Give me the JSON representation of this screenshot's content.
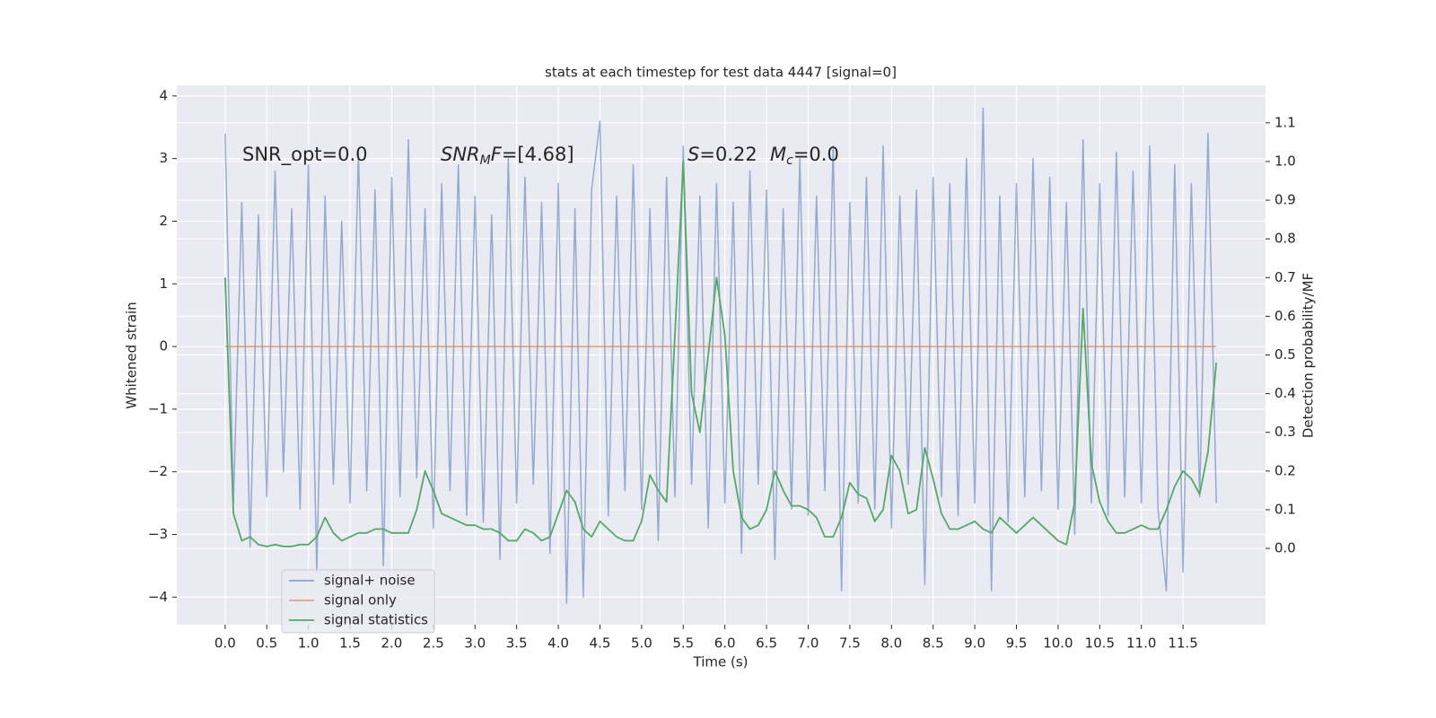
{
  "chart_data": {
    "type": "line",
    "title": "stats at each timestep for test data 4447 [signal=0]",
    "xlabel": "Time (s)",
    "ylabel": "Whitened strain",
    "y2label": "Detection probability/MF",
    "annotations": [
      [
        {
          "text": "SNR_opt=0.0"
        }
      ],
      [
        {
          "text": "SNR",
          "italic": true
        },
        {
          "text": "M",
          "italic": true,
          "sub": true
        },
        {
          "text": "F",
          "italic": true
        },
        {
          "text": "=[4.68]"
        }
      ],
      [
        {
          "text": "S",
          "italic": true
        },
        {
          "text": "=0.22"
        }
      ],
      [
        {
          "text": "M",
          "italic": true
        },
        {
          "text": "c",
          "italic": true,
          "sub": true
        },
        {
          "text": "=0.0"
        }
      ]
    ],
    "x": [
      0,
      0.1,
      0.2,
      0.3,
      0.4,
      0.5,
      0.6,
      0.7,
      0.8,
      0.9,
      1,
      1.1,
      1.2,
      1.3,
      1.4,
      1.5,
      1.6,
      1.7,
      1.8,
      1.9,
      2,
      2.1,
      2.2,
      2.3,
      2.4,
      2.5,
      2.6,
      2.7,
      2.8,
      2.9,
      3,
      3.1,
      3.2,
      3.3,
      3.4,
      3.5,
      3.6,
      3.7,
      3.8,
      3.9,
      4,
      4.1,
      4.2,
      4.3,
      4.4,
      4.5,
      4.6,
      4.7,
      4.8,
      4.9,
      5,
      5.1,
      5.2,
      5.3,
      5.4,
      5.5,
      5.6,
      5.7,
      5.8,
      5.9,
      6,
      6.1,
      6.2,
      6.3,
      6.4,
      6.5,
      6.6,
      6.7,
      6.8,
      6.9,
      7,
      7.1,
      7.2,
      7.3,
      7.4,
      7.5,
      7.6,
      7.7,
      7.8,
      7.9,
      8,
      8.1,
      8.2,
      8.3,
      8.4,
      8.5,
      8.6,
      8.7,
      8.8,
      8.9,
      9,
      9.1,
      9.2,
      9.3,
      9.4,
      9.5,
      9.6,
      9.7,
      9.8,
      9.9,
      10,
      10.1,
      10.2,
      10.3,
      10.4,
      10.5,
      10.6,
      10.7,
      10.8,
      10.9,
      11,
      11.1,
      11.2,
      11.3,
      11.4,
      11.5,
      11.6,
      11.7,
      11.8,
      11.9
    ],
    "series": [
      {
        "name": "signal+ noise",
        "color": "#4c72b0",
        "values": [
          3.4,
          -2.5,
          2.3,
          -3.2,
          2.1,
          -2.4,
          2.8,
          -2.0,
          2.2,
          -2.6,
          2.9,
          -3.6,
          2.4,
          -2.2,
          2.0,
          -2.5,
          3.1,
          -2.3,
          2.5,
          -3.5,
          2.7,
          -2.4,
          3.3,
          -2.1,
          2.2,
          -2.9,
          2.6,
          -2.3,
          2.9,
          -2.7,
          2.4,
          -2.8,
          2.1,
          -3.4,
          3.0,
          -2.5,
          2.7,
          -2.2,
          2.3,
          -3.3,
          2.6,
          -4.1,
          2.2,
          -4.0,
          2.5,
          3.6,
          -2.7,
          2.4,
          -2.3,
          2.9,
          -2.6,
          2.2,
          -3.1,
          2.7,
          -2.4,
          3.2,
          -2.2,
          2.4,
          -2.9,
          2.6,
          -2.5,
          2.3,
          -3.3,
          2.8,
          -2.2,
          2.5,
          -3.4,
          2.2,
          -2.6,
          3.0,
          -2.7,
          2.4,
          -2.3,
          3.2,
          -3.9,
          2.3,
          -2.5,
          2.7,
          -2.6,
          3.2,
          -2.9,
          2.4,
          -2.2,
          2.5,
          -3.8,
          2.7,
          -2.4,
          2.6,
          -2.7,
          3.0,
          -2.5,
          3.8,
          -3.9,
          2.4,
          -2.8,
          2.6,
          -2.4,
          3.0,
          -2.3,
          2.7,
          -2.6,
          2.3,
          -3.0,
          3.3,
          -2.5,
          2.6,
          -2.7,
          3.1,
          -2.4,
          2.8,
          -2.5,
          3.2,
          -2.6,
          -3.9,
          2.9,
          -3.6,
          2.6,
          -2.4,
          3.4,
          -2.5
        ]
      },
      {
        "name": "signal only",
        "color": "#dd8452",
        "values": [
          0,
          0,
          0,
          0,
          0,
          0,
          0,
          0,
          0,
          0,
          0,
          0,
          0,
          0,
          0,
          0,
          0,
          0,
          0,
          0,
          0,
          0,
          0,
          0,
          0,
          0,
          0,
          0,
          0,
          0,
          0,
          0,
          0,
          0,
          0,
          0,
          0,
          0,
          0,
          0,
          0,
          0,
          0,
          0,
          0,
          0,
          0,
          0,
          0,
          0,
          0,
          0,
          0,
          0,
          0,
          0,
          0,
          0,
          0,
          0,
          0,
          0,
          0,
          0,
          0,
          0,
          0,
          0,
          0,
          0,
          0,
          0,
          0,
          0,
          0,
          0,
          0,
          0,
          0,
          0,
          0,
          0,
          0,
          0,
          0,
          0,
          0,
          0,
          0,
          0,
          0,
          0,
          0,
          0,
          0,
          0,
          0,
          0,
          0,
          0,
          0,
          0,
          0,
          0,
          0,
          0,
          0,
          0,
          0,
          0,
          0,
          0,
          0,
          0,
          0,
          0,
          0,
          0,
          0,
          0
        ]
      },
      {
        "name": "signal statistics",
        "color": "#55a868",
        "axis": "y2",
        "values": [
          0.7,
          0.09,
          0.02,
          0.03,
          0.01,
          0.005,
          0.01,
          0.005,
          0.005,
          0.01,
          0.01,
          0.03,
          0.08,
          0.04,
          0.02,
          0.03,
          0.04,
          0.04,
          0.05,
          0.05,
          0.04,
          0.04,
          0.04,
          0.1,
          0.2,
          0.15,
          0.09,
          0.08,
          0.07,
          0.06,
          0.06,
          0.05,
          0.05,
          0.04,
          0.02,
          0.02,
          0.05,
          0.04,
          0.02,
          0.03,
          0.09,
          0.15,
          0.12,
          0.05,
          0.03,
          0.07,
          0.05,
          0.03,
          0.02,
          0.02,
          0.07,
          0.19,
          0.15,
          0.12,
          0.55,
          1.0,
          0.4,
          0.3,
          0.5,
          0.7,
          0.55,
          0.2,
          0.08,
          0.05,
          0.06,
          0.1,
          0.2,
          0.15,
          0.11,
          0.11,
          0.1,
          0.08,
          0.03,
          0.03,
          0.08,
          0.17,
          0.14,
          0.13,
          0.07,
          0.1,
          0.24,
          0.2,
          0.09,
          0.1,
          0.26,
          0.18,
          0.09,
          0.05,
          0.05,
          0.06,
          0.07,
          0.05,
          0.04,
          0.08,
          0.06,
          0.04,
          0.06,
          0.08,
          0.06,
          0.04,
          0.02,
          0.01,
          0.12,
          0.62,
          0.22,
          0.12,
          0.07,
          0.04,
          0.04,
          0.05,
          0.06,
          0.05,
          0.05,
          0.1,
          0.16,
          0.2,
          0.18,
          0.14,
          0.25,
          0.48
        ]
      }
    ],
    "xlim": [
      -0.58,
      12.49
    ],
    "ylim": [
      -4.44,
      4.17
    ],
    "y2lim": [
      -0.197,
      1.197
    ],
    "xticks": [
      {
        "value": 0,
        "label": "0.0"
      },
      {
        "value": 0.5,
        "label": "0.5"
      },
      {
        "value": 1,
        "label": "1.0"
      },
      {
        "value": 1.5,
        "label": "1.5"
      },
      {
        "value": 2,
        "label": "2.0"
      },
      {
        "value": 2.5,
        "label": "2.5"
      },
      {
        "value": 3,
        "label": "3.0"
      },
      {
        "value": 3.5,
        "label": "3.5"
      },
      {
        "value": 4,
        "label": "4.0"
      },
      {
        "value": 4.5,
        "label": "4.5"
      },
      {
        "value": 5,
        "label": "5.0"
      },
      {
        "value": 5.5,
        "label": "5.5"
      },
      {
        "value": 6,
        "label": "6.0"
      },
      {
        "value": 6.5,
        "label": "6.5"
      },
      {
        "value": 7,
        "label": "7.0"
      },
      {
        "value": 7.5,
        "label": "7.5"
      },
      {
        "value": 8,
        "label": "8.0"
      },
      {
        "value": 8.5,
        "label": "8.5"
      },
      {
        "value": 9,
        "label": "9.0"
      },
      {
        "value": 9.5,
        "label": "9.5"
      },
      {
        "value": 10,
        "label": "10.0"
      },
      {
        "value": 10.5,
        "label": "10.5"
      },
      {
        "value": 11,
        "label": "11.0"
      },
      {
        "value": 11.5,
        "label": "11.5"
      }
    ],
    "yticks": [
      {
        "value": -4,
        "label": "−4"
      },
      {
        "value": -3,
        "label": "−3"
      },
      {
        "value": -2,
        "label": "−2"
      },
      {
        "value": -1,
        "label": "−1"
      },
      0,
      1,
      2,
      3,
      4
    ],
    "y2ticks": [
      {
        "value": 0,
        "label": "0.0"
      },
      {
        "value": 0.1,
        "label": "0.1"
      },
      {
        "value": 0.2,
        "label": "0.2"
      },
      {
        "value": 0.3,
        "label": "0.3"
      },
      {
        "value": 0.4,
        "label": "0.4"
      },
      {
        "value": 0.5,
        "label": "0.5"
      },
      {
        "value": 0.6,
        "label": "0.6"
      },
      {
        "value": 0.7,
        "label": "0.7"
      },
      {
        "value": 0.8,
        "label": "0.8"
      },
      {
        "value": 0.9,
        "label": "0.9"
      },
      {
        "value": 1,
        "label": "1.0"
      },
      {
        "value": 1.1,
        "label": "1.1"
      }
    ],
    "grid": true,
    "legend": "lower left"
  }
}
